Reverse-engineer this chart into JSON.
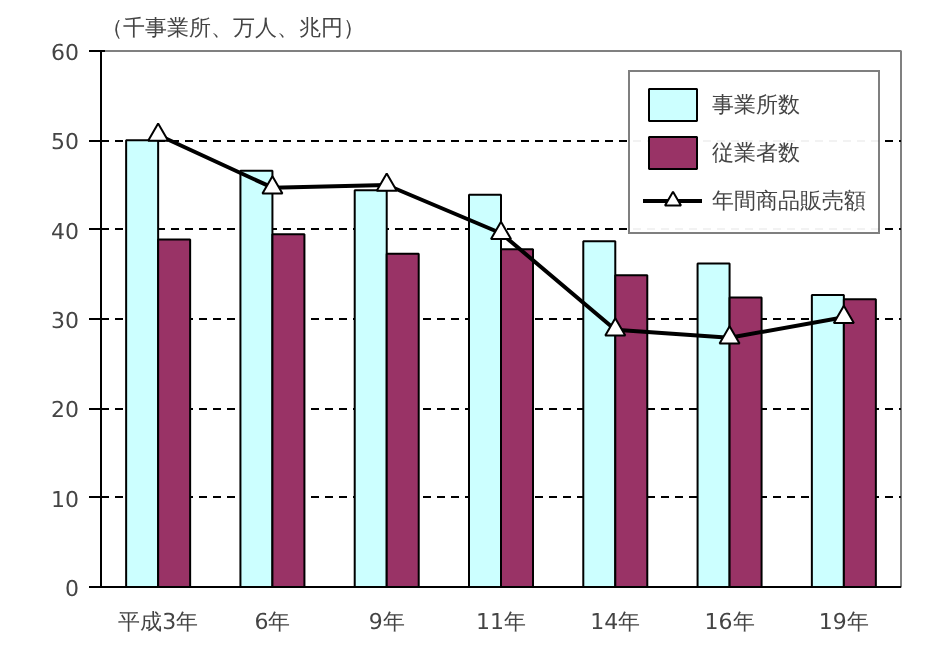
{
  "chart_data": {
    "type": "bar",
    "ylabel": "（千事業所、万人、兆円）",
    "categories": [
      "平成3年",
      "6年",
      "9年",
      "11年",
      "14年",
      "16年",
      "19年"
    ],
    "series": [
      {
        "name": "事業所数",
        "color": "#ccffff",
        "values": [
          50.0,
          46.6,
          44.4,
          43.9,
          38.7,
          36.2,
          32.7
        ]
      },
      {
        "name": "従業者数",
        "color": "#993366",
        "values": [
          38.9,
          39.5,
          37.3,
          37.8,
          34.9,
          32.4,
          32.2
        ]
      },
      {
        "name": "年間商品販売額",
        "type": "line",
        "color": "#000000",
        "marker": "triangle",
        "values": [
          50.6,
          44.7,
          45.0,
          39.6,
          28.8,
          27.9,
          30.2
        ]
      }
    ],
    "ylim": [
      0,
      60
    ],
    "yticks": [
      0,
      10,
      20,
      30,
      40,
      50,
      60
    ],
    "grid": "y",
    "legend": "top right"
  }
}
